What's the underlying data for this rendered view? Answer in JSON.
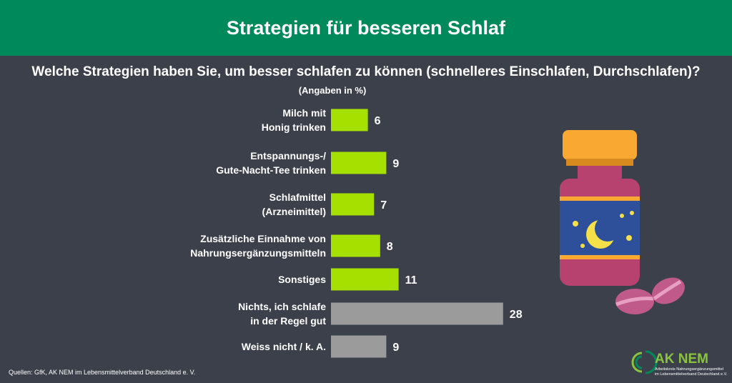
{
  "chart_data": {
    "type": "bar",
    "title": "Strategien für besseren Schlaf",
    "subtitle": "Welche Strategien haben Sie, um besser schlafen zu können (schnelleres Einschlafen, Durchschlafen)?",
    "unit_note": "(Angaben in %)",
    "categories": [
      "Milch mit\nHonig trinken",
      "Entspannungs-/\nGute-Nacht-Tee trinken",
      "Schlafmittel\n(Arzneimittel)",
      "Zusätzliche Einnahme von\nNahrungsergänzungsmitteln",
      "Sonstiges",
      "Nichts, ich schlafe\nin der Regel gut",
      "Weiss nicht / k. A."
    ],
    "values": [
      6,
      9,
      7,
      8,
      11,
      28,
      9
    ],
    "colors": [
      "#a6e000",
      "#a6e000",
      "#a6e000",
      "#a6e000",
      "#a6e000",
      "#9b9b9b",
      "#9b9b9b"
    ],
    "source": "Quellen: GfK, AK NEM im Lebensmittelverband Deutschland e. V.",
    "logo": {
      "name": "AK NEM",
      "line1": "Arbeitskreis Nahrungsergänzungsmittel",
      "line2": "im Lebensmittelverband Deutschland e.V."
    }
  }
}
